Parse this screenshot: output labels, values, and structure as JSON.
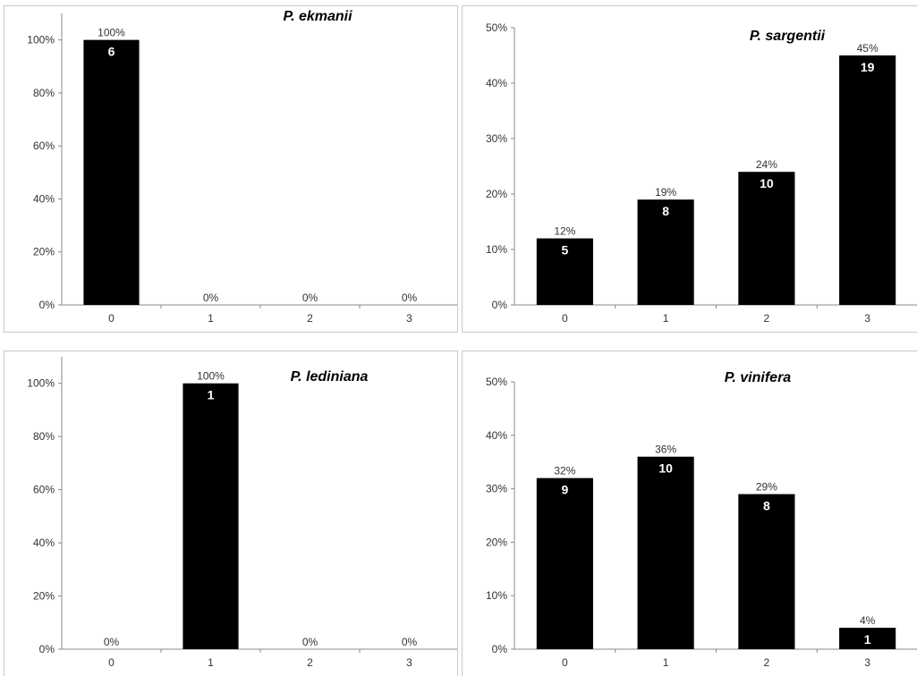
{
  "chart_data": [
    {
      "type": "bar",
      "title": "P. ekmanii",
      "categories": [
        "0",
        "1",
        "2",
        "3"
      ],
      "values": [
        100,
        0,
        0,
        0
      ],
      "percent_labels": [
        "100%",
        "0%",
        "0%",
        "0%"
      ],
      "count_labels": [
        "6",
        "",
        "",
        ""
      ],
      "yticks": [
        "0%",
        "20%",
        "40%",
        "60%",
        "80%",
        "100%"
      ],
      "ylim": [
        0,
        110
      ],
      "grid": false,
      "bar_color": "#000000"
    },
    {
      "type": "bar",
      "title": "P. sargentii",
      "categories": [
        "0",
        "1",
        "2",
        "3"
      ],
      "values": [
        12,
        19,
        24,
        45
      ],
      "percent_labels": [
        "12%",
        "19%",
        "24%",
        "45%"
      ],
      "count_labels": [
        "5",
        "8",
        "10",
        "19"
      ],
      "yticks": [
        "0%",
        "10%",
        "20%",
        "30%",
        "40%",
        "50%"
      ],
      "ylim": [
        0,
        50
      ],
      "grid": false,
      "bar_color": "#000000"
    },
    {
      "type": "bar",
      "title": "P. lediniana",
      "categories": [
        "0",
        "1",
        "2",
        "3"
      ],
      "values": [
        0,
        100,
        0,
        0
      ],
      "percent_labels": [
        "0%",
        "100%",
        "0%",
        "0%"
      ],
      "count_labels": [
        "",
        "1",
        "",
        ""
      ],
      "yticks": [
        "0%",
        "20%",
        "40%",
        "60%",
        "80%",
        "100%"
      ],
      "ylim": [
        0,
        110
      ],
      "grid": false,
      "bar_color": "#000000"
    },
    {
      "type": "bar",
      "title": "P. vinifera",
      "categories": [
        "0",
        "1",
        "2",
        "3"
      ],
      "values": [
        32,
        36,
        29,
        4
      ],
      "percent_labels": [
        "32%",
        "36%",
        "29%",
        "4%"
      ],
      "count_labels": [
        "9",
        "10",
        "8",
        "1"
      ],
      "yticks": [
        "0%",
        "10%",
        "20%",
        "30%",
        "40%",
        "50%"
      ],
      "ylim": [
        0,
        50
      ],
      "grid": false,
      "bar_color": "#000000"
    }
  ]
}
